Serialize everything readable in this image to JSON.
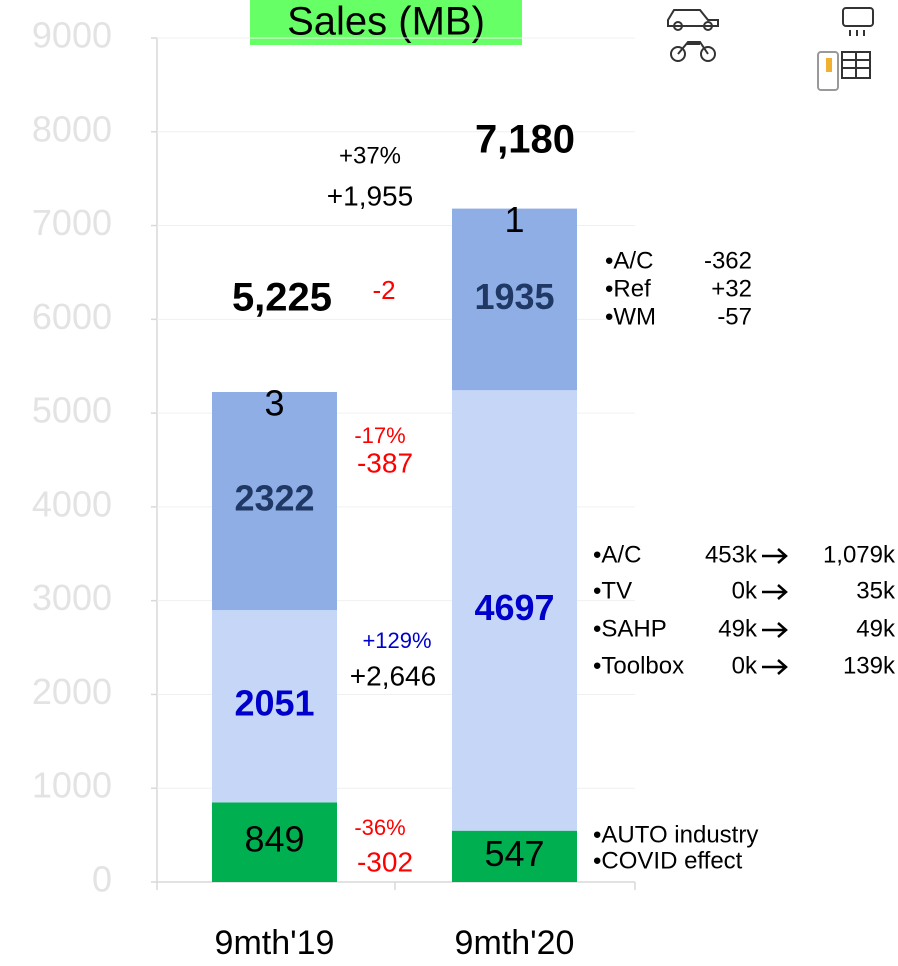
{
  "chart_data": {
    "type": "stacked_bar",
    "title": "Sales (MB)",
    "categories": [
      "9mth'19",
      "9mth'20"
    ],
    "series": [
      {
        "color": "#00b050",
        "label_color": "#000000",
        "label_bold": false,
        "values": [
          849,
          547
        ]
      },
      {
        "color": "#c5d6f6",
        "label_color": "#0000cc",
        "label_bold": true,
        "values": [
          2051,
          4697
        ]
      },
      {
        "color": "#8faee6",
        "label_color": "#1f3864",
        "label_bold": true,
        "values": [
          2322,
          1935
        ]
      },
      {
        "color": "#8faee6",
        "label_color": "#000000",
        "label_bold": false,
        "values": [
          3,
          1
        ]
      }
    ],
    "totals": {
      "values": [
        5225,
        7180
      ],
      "value_labels": [
        "5,225",
        "7,180"
      ]
    },
    "ylim": [
      0,
      9000
    ],
    "yticks": [
      0,
      1000,
      2000,
      3000,
      4000,
      5000,
      6000,
      7000,
      8000,
      9000
    ],
    "annotations": [
      {
        "text": "+37%",
        "color": "#000000"
      },
      {
        "text": "+1,955",
        "color": "#000000"
      },
      {
        "text": "-2",
        "color": "#ff0000"
      },
      {
        "text": "-17%",
        "color": "#ff0000"
      },
      {
        "text": "-387",
        "color": "#ff0000"
      },
      {
        "text": "+129%",
        "color": "#0000cc"
      },
      {
        "text": "+2,646",
        "color": "#000000"
      },
      {
        "text": "-36%",
        "color": "#ff0000"
      },
      {
        "text": "-302",
        "color": "#ff0000"
      }
    ],
    "notes_top": [
      [
        "•A/C",
        "-362"
      ],
      [
        "•Ref",
        "+32"
      ],
      [
        "•WM",
        "-57"
      ]
    ],
    "notes_mid": [
      [
        "•A/C",
        "453k",
        "1,079k"
      ],
      [
        "•TV",
        "0k",
        "35k"
      ],
      [
        "•SAHP",
        "49k",
        "49k"
      ],
      [
        "•Toolbox",
        "0k",
        "139k"
      ]
    ],
    "notes_bottom": [
      "•AUTO industry",
      "•COVID effect"
    ]
  }
}
